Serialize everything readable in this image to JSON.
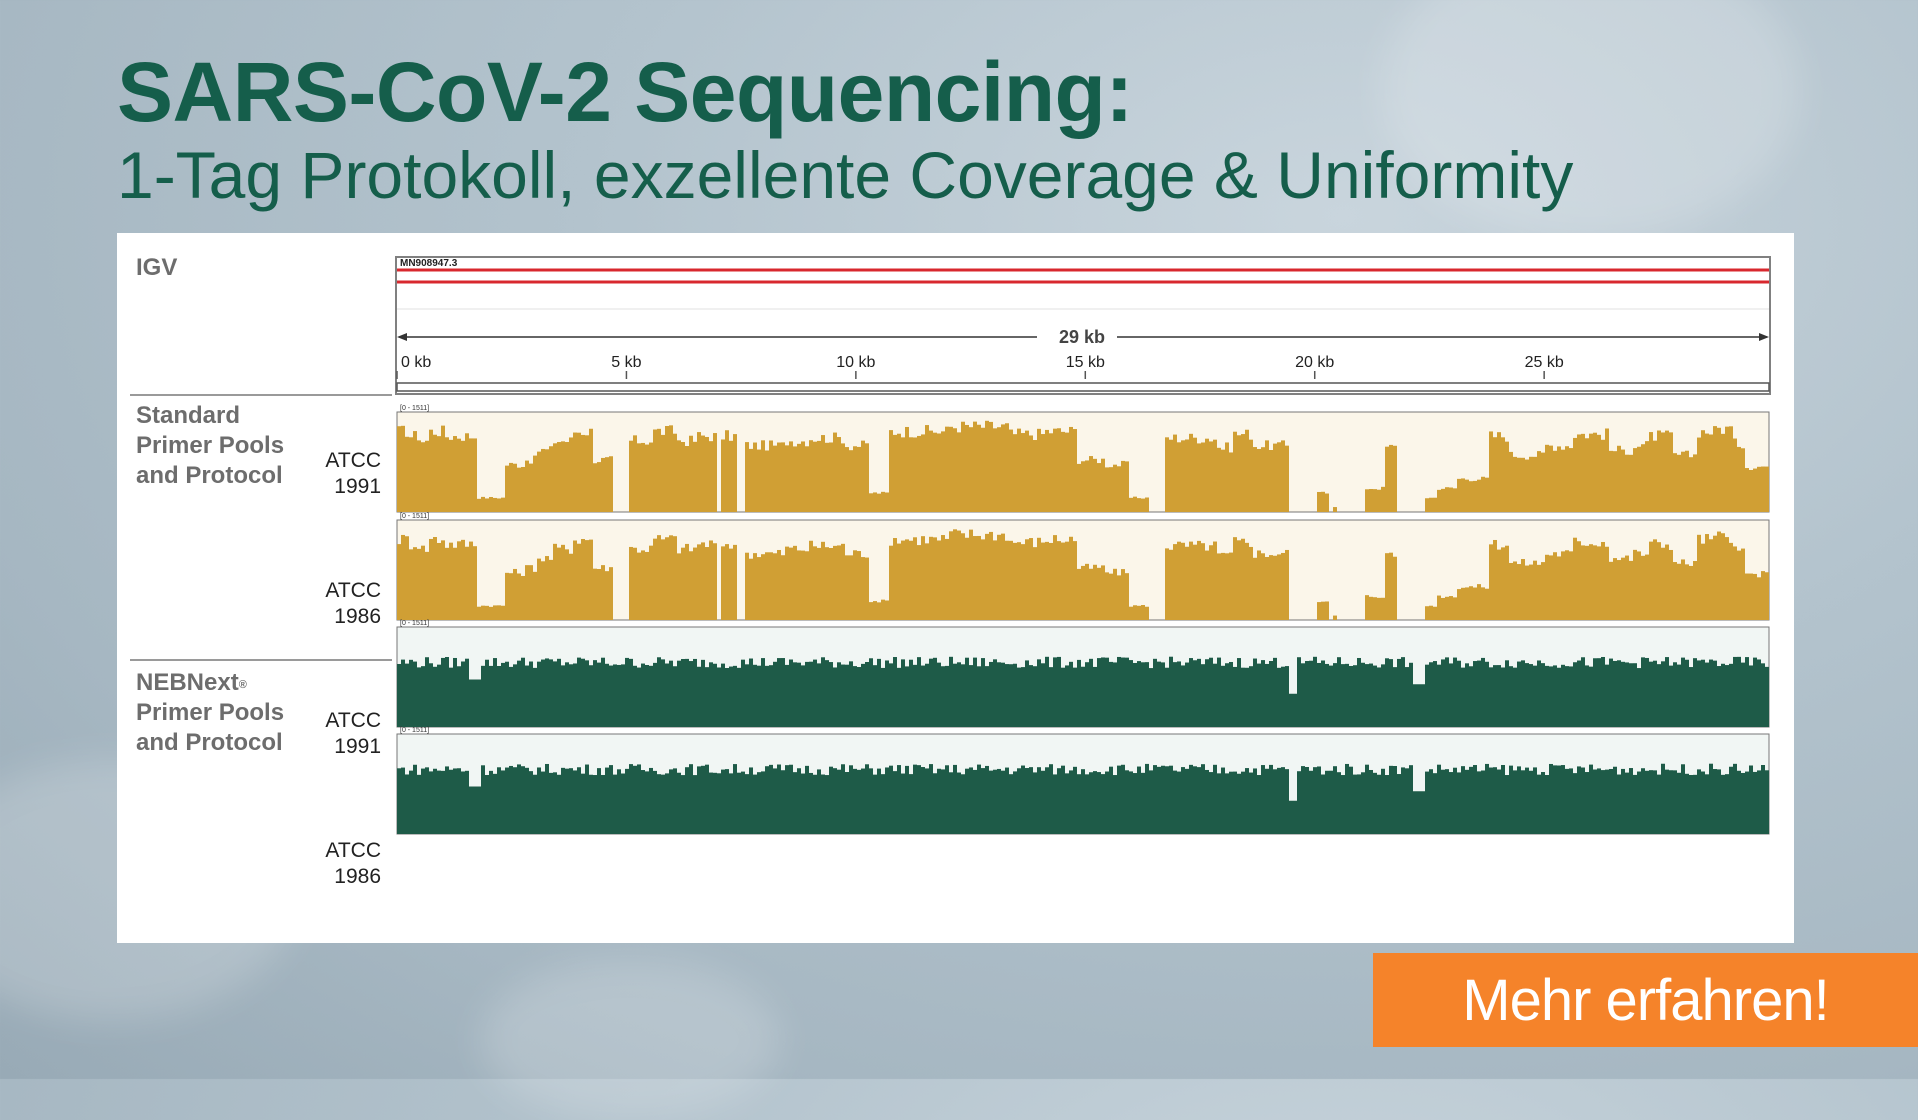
{
  "header": {
    "title": "SARS-CoV-2 Sequencing:",
    "subtitle": "1-Tag Protokoll, exzellente Coverage & Uniformity"
  },
  "figure": {
    "igv_label": "IGV",
    "reference": "MN908947.3",
    "genome_span_label": "29 kb",
    "ruler_ticks": [
      "0 kb",
      "5 kb",
      "10 kb",
      "15 kb",
      "20 kb",
      "25 kb"
    ],
    "track_range_label": "[0 - 1511]",
    "groups": [
      {
        "label_lines": [
          "Standard",
          "Primer Pools",
          "and Protocol"
        ],
        "registered": false,
        "color": "#d09f34",
        "tracks": [
          {
            "sample_line1": "ATCC",
            "sample_line2": "1991"
          },
          {
            "sample_line1": "ATCC",
            "sample_line2": "1986"
          }
        ]
      },
      {
        "label_lines": [
          "NEBNext",
          "Primer Pools",
          "and Protocol"
        ],
        "registered": true,
        "registered_mark": "®",
        "color": "#1e5b48",
        "tracks": [
          {
            "sample_line1": "ATCC",
            "sample_line2": "1991"
          },
          {
            "sample_line1": "ATCC",
            "sample_line2": "1986"
          }
        ]
      }
    ]
  },
  "cta": {
    "label": "Mehr erfahren!",
    "color": "#f5832a"
  },
  "colors": {
    "brand_green": "#155e4b",
    "reference_line": "#d8282e"
  }
}
